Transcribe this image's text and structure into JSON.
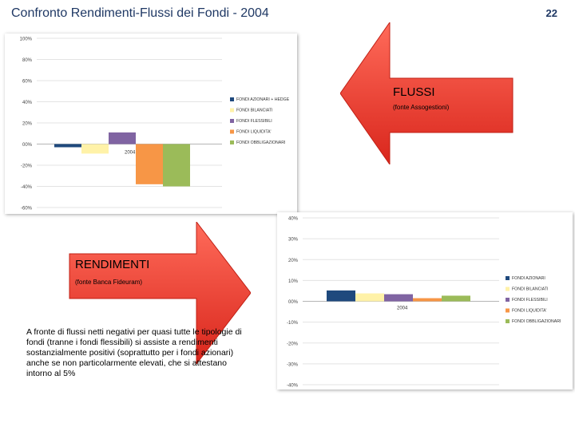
{
  "slide": {
    "title": "Confronto Rendimenti-Flussi dei Fondi - 2004",
    "page_number": "22",
    "body_text": "A fronte di flussi netti negativi per quasi tutte le tipologie di fondi (tranne i fondi flessibili) si assiste a rendimenti sostanzialmente positivi (soprattutto per i fondi azionari) anche se non particolarmente elevati, che si attestano intorno al 5%"
  },
  "arrows": {
    "flussi": {
      "title": "FLUSSI",
      "subtitle": "(fonte Assogestioni)",
      "color": "#f0352b"
    },
    "rendimenti": {
      "title": "RENDIMENTI",
      "subtitle": "(fonte Banca Fideuram)",
      "color": "#f0352b"
    }
  },
  "chart_data": [
    {
      "id": "flussi",
      "type": "bar",
      "title": "",
      "categories": [
        "2004"
      ],
      "ylim": [
        -60,
        100
      ],
      "yticks": [
        100,
        80,
        60,
        40,
        20,
        0,
        -20,
        -40,
        -60
      ],
      "ytick_labels": [
        "100%",
        "80%",
        "60%",
        "40%",
        "20%",
        "00%",
        "-20%",
        "-40%",
        "-60%"
      ],
      "grid": true,
      "legend": "right",
      "series": [
        {
          "name": "FONDI AZIONARI + HEDGE",
          "values": [
            -3
          ],
          "color": "#1f497d"
        },
        {
          "name": "FONDI BILANCIATI",
          "values": [
            -9
          ],
          "color": "#fff2a8"
        },
        {
          "name": "FONDI FLESSIBILI",
          "values": [
            11
          ],
          "color": "#8064a2"
        },
        {
          "name": "FONDI LIQUIDITA'",
          "values": [
            -38
          ],
          "color": "#f79646"
        },
        {
          "name": "FONDI OBBLIGAZIONARI",
          "values": [
            -40
          ],
          "color": "#9bbb59"
        }
      ]
    },
    {
      "id": "rendimenti",
      "type": "bar",
      "title": "",
      "categories": [
        "2004"
      ],
      "ylim": [
        -40,
        40
      ],
      "yticks": [
        40,
        30,
        20,
        10,
        0,
        -10,
        -20,
        -30,
        -40
      ],
      "ytick_labels": [
        "40%",
        "30%",
        "20%",
        "10%",
        "00%",
        "-10%",
        "-20%",
        "-30%",
        "-40%"
      ],
      "grid": true,
      "legend": "right",
      "series": [
        {
          "name": "FONDI AZIONARI",
          "values": [
            5.2
          ],
          "color": "#1f497d"
        },
        {
          "name": "FONDI BILANCIATI",
          "values": [
            3.8
          ],
          "color": "#fff2a8"
        },
        {
          "name": "FONDI FLESSIBILI",
          "values": [
            3.4
          ],
          "color": "#8064a2"
        },
        {
          "name": "FONDI LIQUIDITA'",
          "values": [
            1.5
          ],
          "color": "#f79646"
        },
        {
          "name": "FONDI OBBLIGAZIONARI",
          "values": [
            2.7
          ],
          "color": "#9bbb59"
        }
      ]
    }
  ]
}
